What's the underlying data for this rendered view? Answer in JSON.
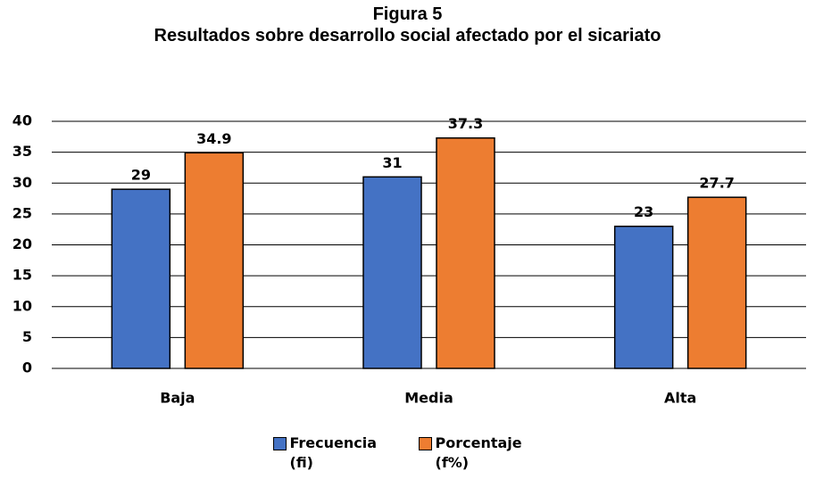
{
  "chart_data": {
    "type": "bar",
    "title": "Figura 5",
    "subtitle": "Resultados sobre desarrollo social afectado por el sicariato",
    "categories": [
      "Baja",
      "Media",
      "Alta"
    ],
    "series": [
      {
        "name": "Frecuencia (fi)",
        "color": "#4472c4",
        "values": [
          29,
          31,
          23
        ]
      },
      {
        "name": "Porcentaje (f%)",
        "color": "#ed7d31",
        "values": [
          34.9,
          37.3,
          27.7
        ]
      }
    ],
    "ylim": [
      0,
      40
    ],
    "yticks": [
      0,
      5,
      10,
      15,
      20,
      25,
      30,
      35,
      40
    ],
    "grid": true,
    "legend": "bottom"
  }
}
